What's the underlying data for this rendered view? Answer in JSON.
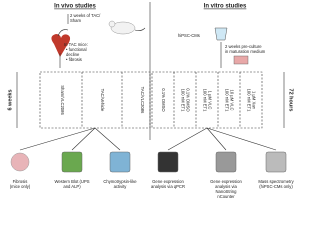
{
  "headers": [
    "In vivo studies",
    "In vitro studies"
  ],
  "in_vivo": {
    "steps": [
      {
        "lines": [
          "2 weeks of TAC/",
          "Sham"
        ]
      },
      {
        "lines": [
          "In TAC mice:",
          "• functional",
          "  decline",
          "• fibrosis"
        ]
      }
    ],
    "duration": "6 weeks",
    "groups": [
      "Sham/VLC2086",
      "TAC/Vehicle",
      "TAC/VLC2086"
    ]
  },
  "in_vitro": {
    "steps": [
      {
        "lines": [
          "hiPSC-CMs"
        ]
      },
      {
        "lines": [
          "2 weeks pre-culture",
          "in maturation medium"
        ]
      }
    ],
    "duration": "72 hours",
    "groups": [
      {
        "lines": [
          "0.1% DMSO"
        ]
      },
      {
        "lines": [
          "100 nM ET1",
          "0.1% DMSO"
        ]
      },
      {
        "lines": [
          "100 nM ET1",
          "1 µM VLC"
        ]
      },
      {
        "lines": [
          "100 nM ET1",
          "10 µM VLC"
        ]
      },
      {
        "lines": [
          "100 nM ET1",
          "1 µM Xan"
        ]
      }
    ]
  },
  "readouts": [
    {
      "lines": [
        "Fibrosis",
        "(mice only)"
      ]
    },
    {
      "lines": [
        "Western Blot (UPS",
        "and ALP)"
      ]
    },
    {
      "lines": [
        "Chymotrypsin-like",
        "activity"
      ]
    },
    {
      "lines": [
        "Gene expression",
        "analysis via qPCR"
      ]
    },
    {
      "lines": [
        "Gene expression",
        "analysis via",
        "NanoString",
        "nCounter"
      ]
    },
    {
      "lines": [
        "Mass spectrometry",
        "(hiPSC-CMs only)"
      ]
    }
  ]
}
